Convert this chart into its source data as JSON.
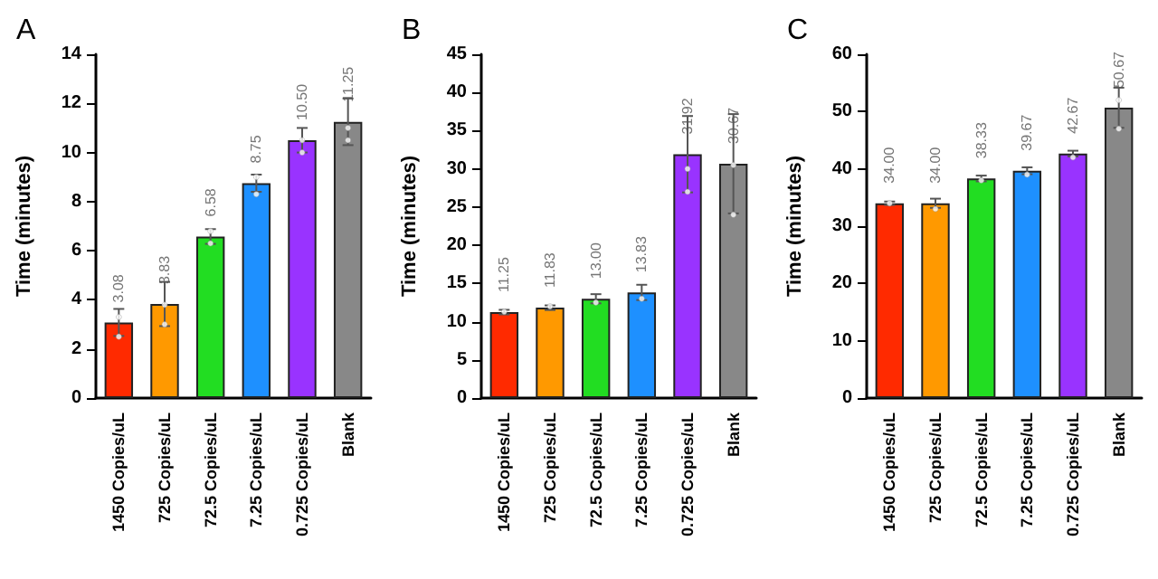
{
  "chart_data": [
    {
      "type": "bar",
      "title": "A",
      "ylabel": "Time (minutes)",
      "categories": [
        "1450 Copies/uL",
        "725 Copies/uL",
        "72.5 Copies/uL",
        "7.25 Copies/uL",
        "0.725 Copies/uL",
        "Blank"
      ],
      "series": [
        {
          "values": [
            3.08,
            3.83,
            6.58,
            8.75,
            10.5,
            11.25
          ],
          "colors": [
            "#ff2a00",
            "#ff9900",
            "#22dd22",
            "#1e90ff",
            "#9933ff",
            "#888888"
          ],
          "errors": [
            0.55,
            0.9,
            0.3,
            0.35,
            0.5,
            0.95
          ],
          "value_labels": [
            "3.08",
            "3.83",
            "6.58",
            "8.75",
            "10.50",
            "11.25"
          ]
        },
        {
          "type": "scatter",
          "color": "#ffffff",
          "x": [
            "1450 Copies/uL",
            "1450 Copies/uL",
            "725 Copies/uL",
            "725 Copies/uL",
            "72.5 Copies/uL",
            "72.5 Copies/uL",
            "7.25 Copies/uL",
            "7.25 Copies/uL",
            "0.725 Copies/uL",
            "0.725 Copies/uL",
            "Blank",
            "Blank"
          ],
          "values": [
            2.5,
            3.3,
            3.0,
            3.8,
            6.3,
            6.8,
            8.3,
            9.0,
            10.0,
            10.5,
            10.5,
            11.0
          ]
        }
      ],
      "ylim": [
        0,
        14
      ],
      "yticks": [
        0,
        2,
        4,
        6,
        8,
        10,
        12,
        14
      ],
      "grid": false
    },
    {
      "type": "bar",
      "title": "B",
      "ylabel": "Time (minutes)",
      "categories": [
        "1450 Copies/uL",
        "725 Copies/uL",
        "72.5 Copies/uL",
        "7.25 Copies/uL",
        "0.725 Copies/uL",
        "Blank"
      ],
      "series": [
        {
          "values": [
            11.25,
            11.83,
            13.0,
            13.83,
            31.92,
            30.67
          ],
          "colors": [
            "#ff2a00",
            "#ff9900",
            "#22dd22",
            "#1e90ff",
            "#9933ff",
            "#888888"
          ],
          "errors": [
            0.3,
            0.3,
            0.6,
            1.0,
            5.0,
            6.5
          ],
          "value_labels": [
            "11.25",
            "11.83",
            "13.00",
            "13.83",
            "31.92",
            "30.67"
          ]
        },
        {
          "type": "scatter",
          "color": "#ffffff",
          "x": [
            "1450 Copies/uL",
            "725 Copies/uL",
            "72.5 Copies/uL",
            "7.25 Copies/uL",
            "0.725 Copies/uL",
            "0.725 Copies/uL",
            "Blank",
            "Blank"
          ],
          "values": [
            11.3,
            12.0,
            12.5,
            13.0,
            27.0,
            30.0,
            24.0,
            30.5
          ]
        }
      ],
      "ylim": [
        0,
        45
      ],
      "yticks": [
        0,
        5,
        10,
        15,
        20,
        25,
        30,
        35,
        40,
        45
      ],
      "grid": false
    },
    {
      "type": "bar",
      "title": "C",
      "ylabel": "Time (minutes)",
      "categories": [
        "1450 Copies/uL",
        "725 Copies/uL",
        "72.5 Copies/uL",
        "7.25 Copies/uL",
        "0.725 Copies/uL",
        "Blank"
      ],
      "series": [
        {
          "values": [
            34.0,
            34.0,
            38.33,
            39.67,
            42.67,
            50.67
          ],
          "colors": [
            "#ff2a00",
            "#ff9900",
            "#22dd22",
            "#1e90ff",
            "#9933ff",
            "#888888"
          ],
          "errors": [
            0.3,
            0.8,
            0.5,
            0.6,
            0.5,
            3.5
          ],
          "value_labels": [
            "34.00",
            "34.00",
            "38.33",
            "39.67",
            "42.67",
            "50.67"
          ]
        },
        {
          "type": "scatter",
          "color": "#ffffff",
          "x": [
            "1450 Copies/uL",
            "725 Copies/uL",
            "72.5 Copies/uL",
            "7.25 Copies/uL",
            "0.725 Copies/uL",
            "Blank",
            "Blank"
          ],
          "values": [
            34.0,
            33.0,
            38.0,
            39.0,
            42.0,
            47.0,
            52.0
          ]
        }
      ],
      "ylim": [
        0,
        60
      ],
      "yticks": [
        0,
        10,
        20,
        30,
        40,
        50,
        60
      ],
      "grid": false
    }
  ]
}
